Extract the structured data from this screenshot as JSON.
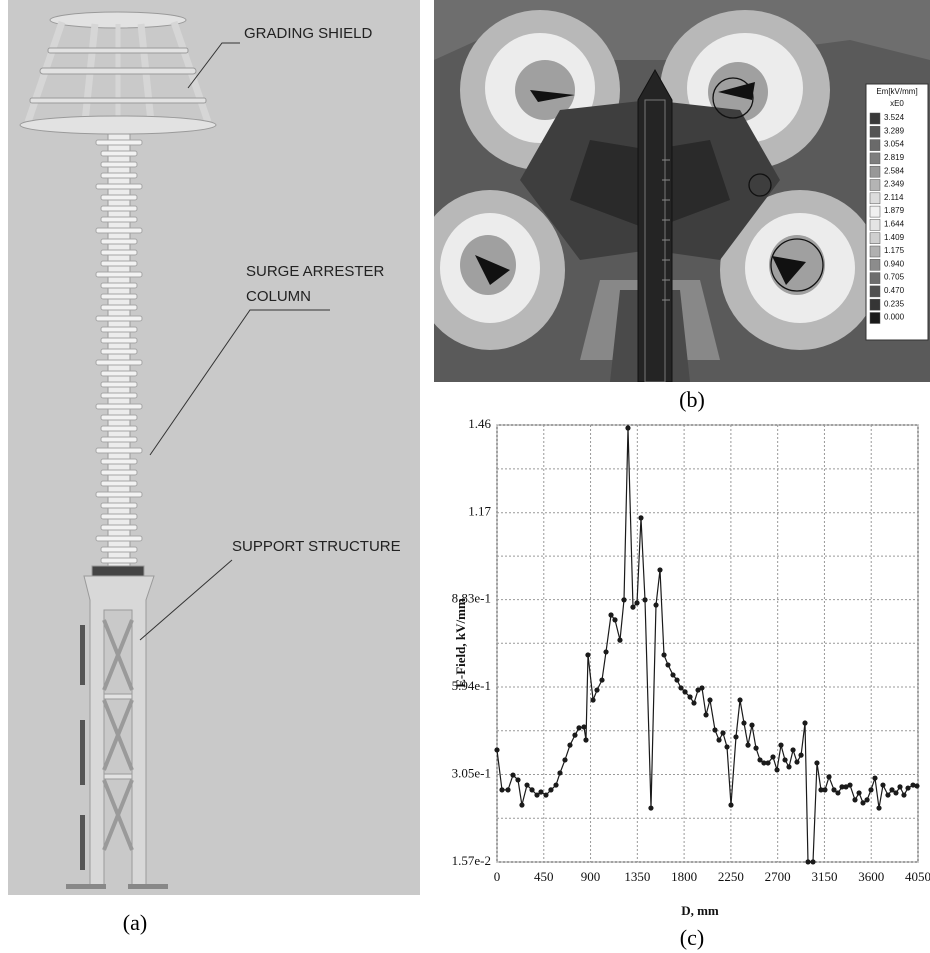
{
  "panel_a": {
    "caption": "(a)",
    "callouts": [
      "GRADING SHIELD",
      "SURGE ARRESTER",
      "COLUMN",
      "SUPPORT STRUCTURE"
    ]
  },
  "panel_b": {
    "caption": "(b)",
    "legend": {
      "title": "Em[kV/mm]",
      "subtitle": "xE0",
      "levels": [
        "3.524",
        "3.289",
        "3.054",
        "2.819",
        "2.584",
        "2.349",
        "2.114",
        "1.879",
        "1.644",
        "1.409",
        "1.175",
        "0.940",
        "0.705",
        "0.470",
        "0.235",
        "0.000"
      ],
      "colors": [
        "#3a3a3a",
        "#555555",
        "#6a6a6a",
        "#7e7e7e",
        "#989898",
        "#b4b4b4",
        "#dcdcdc",
        "#f0f0f0",
        "#e4e4e4",
        "#cfcfcf",
        "#b0b0b0",
        "#8c8c8c",
        "#6e6e6e",
        "#505050",
        "#353535",
        "#1a1a1a"
      ]
    }
  },
  "panel_c": {
    "caption": "(c)"
  },
  "chart_data": {
    "type": "line",
    "xlabel": "D, mm",
    "ylabel": "E-Field, kV/mm",
    "color": "#1a1a1a",
    "grid": true,
    "xlim": [
      0,
      4050
    ],
    "xticks": [
      0,
      450,
      900,
      1350,
      1800,
      2250,
      2700,
      3150,
      3600,
      4050
    ],
    "ylim": [
      0.0157,
      1.46
    ],
    "yticks": [
      {
        "value": 0.0157,
        "label": "1.57e-2"
      },
      {
        "value": 0.305,
        "label": "3.05e-1"
      },
      {
        "value": 0.594,
        "label": "5.94e-1"
      },
      {
        "value": 0.883,
        "label": "8.83e-1"
      },
      1.17,
      1.46
    ],
    "x": [
      0,
      48,
      106,
      154,
      202,
      240,
      289,
      337,
      385,
      423,
      471,
      519,
      568,
      606,
      654,
      702,
      750,
      789,
      837,
      856,
      875,
      924,
      962,
      1010,
      1049,
      1097,
      1135,
      1183,
      1222,
      1260,
      1308,
      1347,
      1385,
      1424,
      1481,
      1530,
      1568,
      1607,
      1645,
      1693,
      1732,
      1770,
      1809,
      1857,
      1895,
      1934,
      1972,
      2011,
      2049,
      2097,
      2136,
      2174,
      2213,
      2251,
      2299,
      2338,
      2376,
      2415,
      2453,
      2492,
      2530,
      2568,
      2607,
      2655,
      2694,
      2732,
      2771,
      2809,
      2848,
      2886,
      2925,
      2963,
      2992,
      3040,
      3078,
      3117,
      3155,
      3194,
      3242,
      3280,
      3319,
      3357,
      3396,
      3444,
      3483,
      3521,
      3560,
      3598,
      3636,
      3675,
      3713,
      3761,
      3800,
      3838,
      3877,
      3915,
      3954,
      4002,
      4040
    ],
    "values": [
      0.386,
      0.254,
      0.254,
      0.303,
      0.287,
      0.204,
      0.27,
      0.254,
      0.237,
      0.247,
      0.237,
      0.254,
      0.27,
      0.31,
      0.353,
      0.402,
      0.435,
      0.459,
      0.462,
      0.419,
      0.7,
      0.551,
      0.584,
      0.617,
      0.71,
      0.832,
      0.816,
      0.749,
      0.882,
      1.45,
      0.858,
      0.872,
      1.153,
      0.882,
      0.194,
      0.865,
      0.981,
      0.7,
      0.667,
      0.634,
      0.617,
      0.591,
      0.578,
      0.561,
      0.541,
      0.584,
      0.591,
      0.502,
      0.551,
      0.452,
      0.419,
      0.442,
      0.396,
      0.204,
      0.429,
      0.551,
      0.475,
      0.402,
      0.468,
      0.392,
      0.353,
      0.343,
      0.343,
      0.363,
      0.32,
      0.402,
      0.353,
      0.33,
      0.386,
      0.346,
      0.369,
      0.475,
      0.016,
      0.016,
      0.343,
      0.254,
      0.254,
      0.297,
      0.254,
      0.244,
      0.264,
      0.264,
      0.27,
      0.221,
      0.244,
      0.211,
      0.221,
      0.254,
      0.293,
      0.194,
      0.27,
      0.237,
      0.254,
      0.244,
      0.264,
      0.237,
      0.26,
      0.27,
      0.267
    ]
  }
}
